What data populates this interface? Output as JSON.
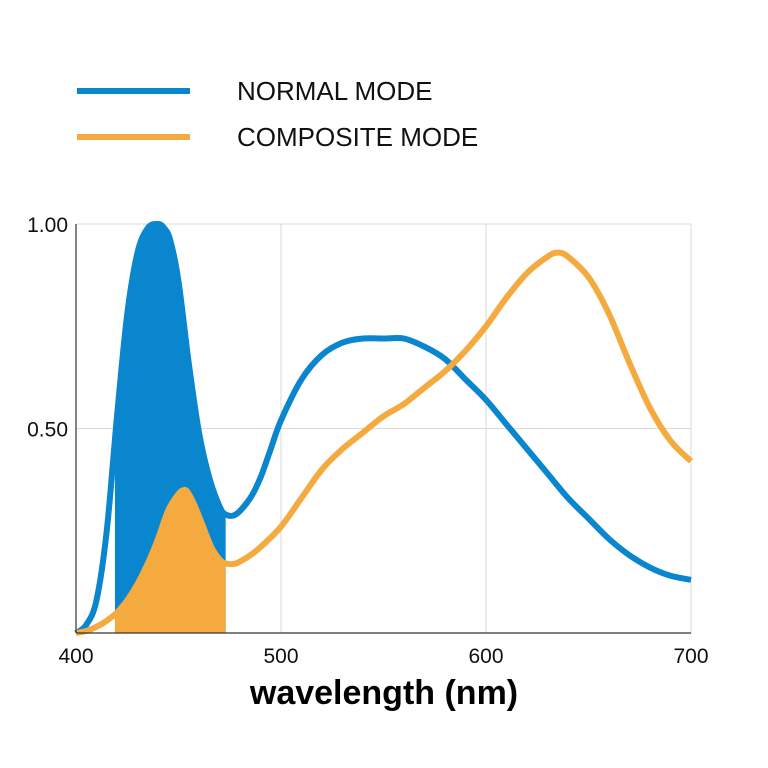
{
  "chart_data": {
    "type": "line",
    "title": "",
    "xlabel": "wavelength (nm)",
    "ylabel": "",
    "xlim": [
      400,
      700
    ],
    "ylim": [
      0,
      1
    ],
    "x_ticks": [
      "400",
      "500",
      "600",
      "700"
    ],
    "x_tick_values": [
      400,
      500,
      600,
      700
    ],
    "y_ticks": [
      "1.00",
      "0.50"
    ],
    "y_tick_values": [
      1.0,
      0.5
    ],
    "grid": true,
    "legend_position": "top-left",
    "series": [
      {
        "name": "NORMAL MODE",
        "color": "#0a86cf",
        "x": [
          400,
          405,
          410,
          415,
          420,
          425,
          430,
          435,
          440,
          443,
          446,
          450,
          455,
          460,
          465,
          470,
          473,
          478,
          485,
          490,
          495,
          500,
          510,
          520,
          530,
          540,
          550,
          560,
          570,
          580,
          590,
          600,
          610,
          620,
          630,
          640,
          650,
          660,
          670,
          680,
          690,
          700
        ],
        "y": [
          0.0,
          0.02,
          0.08,
          0.25,
          0.53,
          0.78,
          0.93,
          0.99,
          1.0,
          0.99,
          0.96,
          0.86,
          0.66,
          0.49,
          0.38,
          0.31,
          0.29,
          0.29,
          0.33,
          0.38,
          0.45,
          0.52,
          0.62,
          0.68,
          0.71,
          0.72,
          0.72,
          0.72,
          0.7,
          0.67,
          0.62,
          0.57,
          0.51,
          0.45,
          0.39,
          0.33,
          0.28,
          0.23,
          0.19,
          0.16,
          0.14,
          0.13
        ],
        "filled_range": [
          419,
          473
        ]
      },
      {
        "name": "COMPOSITE MODE",
        "color": "#f4aa3f",
        "x": [
          400,
          405,
          410,
          415,
          420,
          425,
          430,
          435,
          440,
          445,
          450,
          453,
          455,
          458,
          462,
          466,
          470,
          473,
          478,
          485,
          490,
          500,
          510,
          520,
          530,
          540,
          550,
          560,
          570,
          580,
          590,
          600,
          610,
          620,
          630,
          635,
          640,
          650,
          660,
          670,
          680,
          690,
          700
        ],
        "y": [
          0.0,
          0.005,
          0.015,
          0.03,
          0.05,
          0.08,
          0.12,
          0.17,
          0.23,
          0.3,
          0.34,
          0.35,
          0.34,
          0.31,
          0.26,
          0.21,
          0.18,
          0.17,
          0.17,
          0.19,
          0.21,
          0.26,
          0.33,
          0.4,
          0.45,
          0.49,
          0.53,
          0.56,
          0.6,
          0.64,
          0.69,
          0.75,
          0.82,
          0.88,
          0.92,
          0.93,
          0.92,
          0.87,
          0.78,
          0.66,
          0.55,
          0.47,
          0.42
        ],
        "filled_range": [
          419,
          473
        ]
      }
    ]
  }
}
